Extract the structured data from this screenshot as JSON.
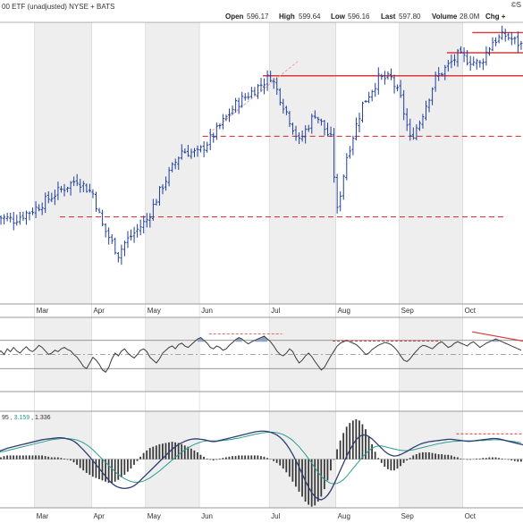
{
  "header": {
    "symbol_desc": "00 ETF (unadjusted) NYSE + BATS",
    "watermark": "©S",
    "open_label": "Open",
    "open": "596.17",
    "high_label": "High",
    "high": "599.64",
    "low_label": "Low",
    "low": "596.16",
    "last_label": "Last",
    "last": "597.80",
    "volume_label": "Volume",
    "volume": "28.0M",
    "chg_label": "Chg +"
  },
  "macd_legend": {
    "params": "95",
    "macd": "3.159",
    "signal": "1.336"
  },
  "colors": {
    "price": "#1f3f9b",
    "support": "#d93a3a",
    "trend": "#f0a0a0",
    "grid": "#d0d0d0",
    "band": "#eeeeee",
    "macd": "#2e3e72",
    "signal": "#2a9d8f",
    "histogram": "#3a3a3a"
  },
  "chart_data": [
    {
      "type": "ohlc",
      "panel": "price",
      "x_axis": {
        "ticks": [
          "Mar",
          "Apr",
          "May",
          "Jun",
          "Jul",
          "Aug",
          "Sep",
          "Oct"
        ],
        "tick_day_index": [
          12,
          30,
          47,
          64,
          86,
          107,
          127,
          147
        ]
      },
      "ylim": [
        510,
        605
      ],
      "n_days": 166,
      "key_points": [
        [
          0,
          539
        ],
        [
          5,
          538
        ],
        [
          12,
          542
        ],
        [
          18,
          547
        ],
        [
          25,
          552
        ],
        [
          30,
          547
        ],
        [
          33,
          536
        ],
        [
          38,
          526
        ],
        [
          40,
          530
        ],
        [
          47,
          538
        ],
        [
          52,
          550
        ],
        [
          58,
          562
        ],
        [
          63,
          561
        ],
        [
          67,
          566
        ],
        [
          75,
          578
        ],
        [
          83,
          585
        ],
        [
          86,
          588
        ],
        [
          90,
          578
        ],
        [
          95,
          565
        ],
        [
          100,
          575
        ],
        [
          105,
          566
        ],
        [
          107,
          541
        ],
        [
          110,
          560
        ],
        [
          115,
          578
        ],
        [
          120,
          587
        ],
        [
          124,
          587
        ],
        [
          127,
          580
        ],
        [
          130,
          566
        ],
        [
          133,
          572
        ],
        [
          138,
          587
        ],
        [
          145,
          595
        ],
        [
          152,
          592
        ],
        [
          156,
          600
        ],
        [
          160,
          602
        ],
        [
          166,
          598
        ]
      ],
      "support_lines": [
        {
          "style": "dashed",
          "value": 539,
          "from": 20,
          "to": 160
        },
        {
          "style": "dashed",
          "value": 567,
          "from": 65,
          "to": 166
        },
        {
          "style": "solid",
          "value": 588,
          "from": 84,
          "to": 166
        },
        {
          "style": "solid",
          "value": 596,
          "from": 142,
          "to": 166
        },
        {
          "style": "solid",
          "value": 603,
          "from": 150,
          "to": 166
        }
      ],
      "trend_line": {
        "from": [
          67,
          568
        ],
        "to": [
          95,
          593
        ]
      }
    },
    {
      "type": "line",
      "panel": "oscillator",
      "ylim": [
        0,
        100
      ],
      "levels": [
        70,
        50,
        30
      ],
      "values": [
        52,
        55,
        50,
        58,
        54,
        60,
        55,
        52,
        57,
        61,
        56,
        54,
        58,
        63,
        60,
        55,
        50,
        52,
        56,
        54,
        58,
        60,
        57,
        55,
        50,
        46,
        40,
        33,
        30,
        38,
        46,
        42,
        36,
        28,
        25,
        32,
        44,
        52,
        48,
        55,
        58,
        52,
        48,
        45,
        50,
        56,
        58,
        54,
        46,
        42,
        38,
        44,
        52,
        56,
        60,
        62,
        58,
        64,
        66,
        62,
        60,
        64,
        68,
        72,
        74,
        70,
        66,
        60,
        58,
        62,
        60,
        56,
        58,
        63,
        67,
        71,
        74,
        72,
        68,
        65,
        68,
        70,
        72,
        74,
        76,
        72,
        68,
        62,
        55,
        50,
        48,
        52,
        58,
        54,
        45,
        38,
        42,
        48,
        52,
        47,
        40,
        34,
        28,
        32,
        40,
        48,
        55,
        62,
        66,
        68,
        70,
        68,
        66,
        64,
        60,
        55,
        50,
        52,
        57,
        60,
        63,
        65,
        67,
        66,
        64,
        60,
        55,
        48,
        42,
        40,
        44,
        50,
        55,
        60,
        63,
        62,
        60,
        58,
        62,
        66,
        68,
        64,
        60,
        62,
        66,
        68,
        66,
        64,
        62,
        66,
        68,
        64,
        60,
        63,
        66,
        68,
        70,
        72,
        70,
        68,
        66,
        64,
        62,
        60,
        58,
        56
      ]
    },
    {
      "type": "line",
      "panel": "macd",
      "ylim": [
        -12,
        10
      ],
      "series": [
        {
          "values": [
            2.0,
            2.2,
            2.5,
            2.8,
            3.0,
            3.2,
            3.4,
            3.6,
            3.8,
            4.0,
            4.2,
            4.4,
            4.6,
            4.8,
            5.0,
            5.1,
            5.2,
            5.3,
            5.4,
            5.5,
            5.5,
            5.4,
            5.2,
            5.0,
            4.6,
            4.0,
            3.2,
            2.4,
            1.5,
            0.6,
            -0.4,
            -1.4,
            -2.4,
            -3.4,
            -4.4,
            -5.4,
            -6.2,
            -6.8,
            -7.2,
            -7.4,
            -7.5,
            -7.4,
            -7.2,
            -6.8,
            -6.2,
            -5.4,
            -4.6,
            -3.8,
            -3.0,
            -2.2,
            -1.4,
            -0.6,
            0.2,
            1.0,
            1.8,
            2.6,
            3.2,
            3.8,
            4.2,
            4.6,
            4.9,
            5.1,
            5.2,
            5.2,
            5.1,
            5.0,
            4.8,
            4.6,
            4.5,
            4.6,
            4.8,
            5.0,
            5.2,
            5.4,
            5.6,
            5.8,
            6.0,
            6.2,
            6.4,
            6.6,
            6.8,
            7.0,
            7.1,
            7.2,
            7.2,
            7.1,
            6.9,
            6.6,
            6.2,
            5.6,
            4.8,
            3.8,
            2.6,
            1.2,
            -0.4,
            -2.0,
            -3.8,
            -5.6,
            -7.2,
            -8.6,
            -9.6,
            -10.2,
            -10.4,
            -10.0,
            -9.2,
            -8.0,
            -6.4,
            -4.6,
            -2.8,
            -1.0,
            0.8,
            2.4,
            3.8,
            5.0,
            5.8,
            6.2,
            6.2,
            5.8,
            5.2,
            4.4,
            3.6,
            2.8,
            2.0,
            1.4,
            1.0,
            0.8,
            0.9,
            1.2,
            1.6,
            2.0,
            2.5,
            3.0,
            3.4,
            3.8,
            4.1,
            4.3,
            4.5,
            4.6,
            4.7,
            4.8,
            4.9,
            5.0,
            5.1,
            5.1,
            5.0,
            4.9,
            4.8,
            4.7,
            4.6,
            4.6,
            4.7,
            4.8,
            4.9,
            5.0,
            5.1,
            5.2,
            5.3,
            5.3,
            5.2,
            5.0,
            4.8,
            4.6,
            4.4,
            4.2,
            4.0,
            3.8,
            3.6,
            3.2
          ]
        },
        {
          "values": [
            1.8,
            1.9,
            2.0,
            2.2,
            2.4,
            2.6,
            2.8,
            3.0,
            3.2,
            3.4,
            3.6,
            3.8,
            4.0,
            4.2,
            4.4,
            4.6,
            4.8,
            5.0,
            5.1,
            5.2,
            5.3,
            5.3,
            5.3,
            5.2,
            5.1,
            4.9,
            4.6,
            4.2,
            3.7,
            3.1,
            2.4,
            1.6,
            0.8,
            0.0,
            -0.8,
            -1.6,
            -2.4,
            -3.2,
            -3.9,
            -4.5,
            -5.0,
            -5.4,
            -5.7,
            -5.9,
            -5.9,
            -5.8,
            -5.6,
            -5.2,
            -4.8,
            -4.2,
            -3.6,
            -3.0,
            -2.3,
            -1.6,
            -0.9,
            -0.2,
            0.5,
            1.2,
            1.8,
            2.4,
            2.9,
            3.4,
            3.8,
            4.1,
            4.4,
            4.6,
            4.7,
            4.7,
            4.7,
            4.7,
            4.7,
            4.8,
            4.9,
            5.0,
            5.1,
            5.3,
            5.4,
            5.6,
            5.8,
            6.0,
            6.2,
            6.4,
            6.5,
            6.7,
            6.8,
            6.9,
            6.9,
            6.9,
            6.8,
            6.6,
            6.3,
            5.9,
            5.4,
            4.8,
            4.0,
            3.2,
            2.2,
            1.2,
            0.1,
            -1.0,
            -2.2,
            -3.4,
            -4.4,
            -5.2,
            -5.8,
            -6.2,
            -6.3,
            -6.2,
            -5.8,
            -5.2,
            -4.4,
            -3.4,
            -2.4,
            -1.4,
            -0.4,
            0.6,
            1.4,
            2.2,
            2.8,
            3.2,
            3.4,
            3.4,
            3.2,
            3.0,
            2.8,
            2.6,
            2.4,
            2.3,
            2.2,
            2.2,
            2.3,
            2.4,
            2.6,
            2.8,
            3.0,
            3.2,
            3.4,
            3.6,
            3.8,
            4.0,
            4.1,
            4.3,
            4.4,
            4.5,
            4.6,
            4.6,
            4.7,
            4.7,
            4.7,
            4.7,
            4.7,
            4.7,
            4.8,
            4.8,
            4.9,
            4.9,
            5.0,
            5.0,
            5.0,
            4.9,
            4.8,
            4.7,
            4.6,
            4.5,
            4.4,
            4.2
          ]
        }
      ],
      "divergence_line": {
        "from": [
          145,
          6.5
        ],
        "to": [
          166,
          6.5
        ]
      }
    }
  ]
}
